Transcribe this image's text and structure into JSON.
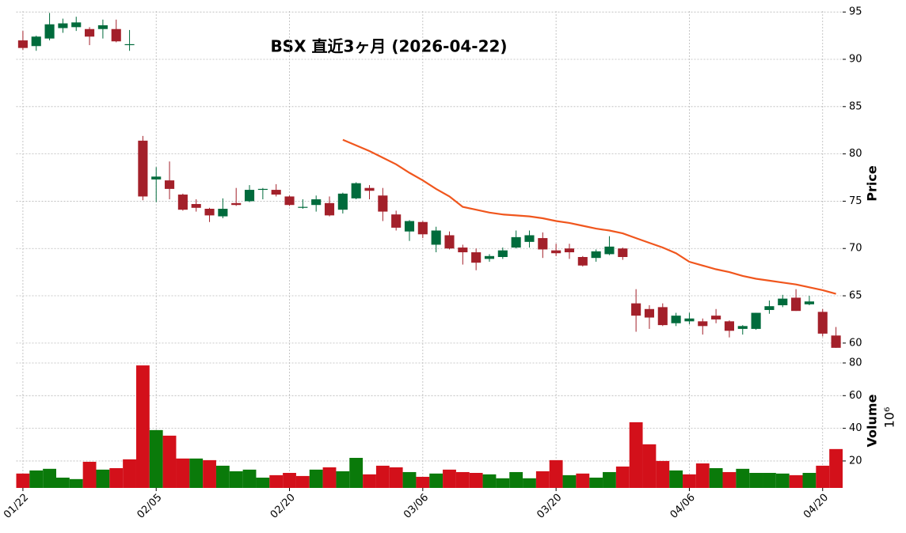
{
  "chart_data": {
    "type": "candlestick",
    "title": "BSX 直近3ヶ月 (2026-04-22)",
    "categories": [
      "01/22",
      null,
      null,
      null,
      null,
      null,
      null,
      null,
      null,
      null,
      "02/05",
      null,
      null,
      null,
      null,
      null,
      null,
      null,
      null,
      null,
      "02/20",
      null,
      null,
      null,
      null,
      null,
      null,
      null,
      null,
      null,
      "03/06",
      null,
      null,
      null,
      null,
      null,
      null,
      null,
      null,
      null,
      "03/20",
      null,
      null,
      null,
      null,
      null,
      null,
      null,
      null,
      null,
      "04/06",
      null,
      null,
      null,
      null,
      null,
      null,
      null,
      null,
      null,
      "04/20",
      null
    ],
    "open": [
      92.0,
      91.4,
      92.2,
      93.3,
      93.4,
      93.2,
      93.2,
      93.2,
      91.5,
      81.4,
      77.3,
      77.2,
      75.7,
      74.7,
      74.2,
      73.4,
      74.8,
      75.0,
      76.2,
      76.2,
      75.5,
      74.3,
      74.6,
      74.8,
      74.1,
      75.3,
      76.4,
      75.6,
      73.6,
      71.8,
      72.8,
      70.4,
      71.4,
      70.1,
      69.6,
      68.9,
      69.1,
      70.1,
      70.7,
      71.1,
      69.8,
      70.0,
      69.1,
      69.0,
      69.4,
      70.0,
      64.2,
      63.6,
      63.8,
      62.1,
      62.3,
      62.3,
      62.9,
      62.3,
      61.5,
      61.5,
      63.5,
      64.0,
      64.8,
      64.1,
      63.3,
      60.8
    ],
    "high": [
      93.0,
      92.5,
      94.9,
      94.3,
      94.5,
      93.4,
      94.2,
      94.2,
      93.1,
      81.9,
      78.6,
      79.2,
      75.8,
      75.2,
      74.3,
      75.3,
      76.4,
      76.7,
      76.4,
      76.8,
      75.6,
      75.2,
      75.6,
      75.5,
      75.9,
      77.0,
      76.7,
      76.4,
      74.0,
      73.0,
      72.9,
      72.3,
      71.8,
      70.4,
      70.0,
      69.4,
      70.1,
      71.9,
      71.9,
      71.7,
      70.5,
      70.5,
      69.2,
      69.9,
      71.3,
      70.1,
      65.7,
      64.0,
      64.2,
      63.2,
      63.2,
      62.6,
      63.6,
      62.4,
      61.9,
      63.2,
      64.5,
      65.1,
      65.7,
      65.0,
      63.6,
      61.7
    ],
    "low": [
      91.0,
      90.9,
      92.0,
      92.8,
      93.0,
      91.5,
      92.2,
      91.8,
      90.9,
      75.1,
      74.9,
      75.2,
      74.0,
      73.9,
      72.8,
      73.2,
      74.5,
      74.9,
      75.2,
      75.5,
      74.5,
      74.2,
      73.9,
      73.4,
      73.7,
      75.2,
      75.2,
      72.9,
      71.9,
      70.8,
      71.1,
      69.6,
      69.9,
      68.3,
      67.7,
      68.6,
      68.9,
      70.0,
      70.1,
      69.0,
      69.2,
      68.9,
      68.1,
      68.6,
      69.3,
      68.8,
      61.2,
      61.5,
      61.8,
      61.8,
      62.0,
      60.9,
      62.1,
      60.6,
      60.9,
      61.4,
      63.1,
      63.8,
      63.4,
      64.0,
      60.7,
      59.5
    ],
    "close": [
      91.2,
      92.4,
      93.7,
      93.8,
      93.9,
      92.4,
      93.6,
      91.9,
      91.6,
      75.5,
      77.6,
      76.3,
      74.1,
      74.3,
      73.5,
      74.2,
      74.6,
      76.2,
      76.3,
      75.7,
      74.6,
      74.4,
      75.2,
      73.5,
      75.8,
      76.9,
      76.1,
      73.9,
      72.2,
      72.9,
      71.5,
      71.9,
      70.0,
      69.6,
      68.5,
      69.2,
      69.8,
      71.2,
      71.4,
      69.9,
      69.5,
      69.6,
      68.2,
      69.7,
      70.2,
      69.1,
      62.9,
      62.7,
      61.9,
      62.9,
      62.6,
      61.8,
      62.5,
      61.3,
      61.8,
      63.2,
      63.9,
      64.7,
      63.4,
      64.4,
      61.0,
      59.5
    ],
    "ylim": [
      58.9,
      95.1
    ],
    "yticks": [
      60,
      65,
      70,
      75,
      80,
      85,
      90,
      95
    ],
    "ylabel": "Price",
    "grid": true,
    "up_color": "#006b3c",
    "down_color": "#a3202a",
    "moving_average": {
      "color": "#f0561d",
      "values": [
        null,
        null,
        null,
        null,
        null,
        null,
        null,
        null,
        null,
        null,
        null,
        null,
        null,
        null,
        null,
        null,
        null,
        null,
        null,
        null,
        null,
        null,
        null,
        null,
        81.5,
        80.9,
        80.3,
        79.6,
        78.9,
        78.0,
        77.2,
        76.3,
        75.5,
        74.4,
        74.1,
        73.8,
        73.6,
        73.5,
        73.4,
        73.2,
        72.9,
        72.7,
        72.4,
        72.1,
        71.9,
        71.6,
        71.1,
        70.6,
        70.1,
        69.5,
        68.6,
        68.2,
        67.8,
        67.5,
        67.1,
        66.8,
        66.6,
        66.4,
        66.2,
        65.9,
        65.6,
        65.2
      ]
    },
    "volume": {
      "values": [
        12.3,
        14.2,
        15.2,
        9.8,
        8.9,
        19.5,
        14.7,
        15.6,
        21.0,
        78.5,
        38.9,
        35.5,
        21.5,
        21.5,
        20.5,
        17.1,
        13.7,
        14.7,
        9.8,
        11.3,
        12.7,
        10.8,
        14.7,
        16.1,
        13.7,
        21.9,
        11.8,
        17.1,
        16.1,
        13.2,
        10.3,
        12.3,
        14.7,
        13.2,
        12.7,
        11.8,
        9.4,
        13.2,
        9.4,
        13.7,
        20.5,
        11.3,
        12.3,
        9.8,
        13.2,
        16.6,
        43.7,
        30.2,
        20.0,
        14.2,
        11.8,
        18.5,
        15.6,
        13.2,
        15.2,
        12.7,
        12.7,
        12.3,
        11.3,
        12.7,
        17.1,
        27.3
      ],
      "ylim": [
        3.5,
        85.8
      ],
      "yticks": [
        20,
        40,
        60,
        80
      ],
      "ylabel": "Volume",
      "scale_label": "10⁶",
      "up_color": "#0a7a0a",
      "down_color": "#d3101a"
    }
  }
}
